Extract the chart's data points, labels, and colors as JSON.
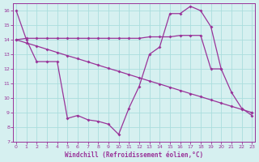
{
  "background_color": "#d6f0f0",
  "grid_color": "#aadddd",
  "line_color": "#993399",
  "lineA": {
    "x": [
      0,
      1,
      2,
      3,
      4,
      5,
      6,
      7,
      8,
      9,
      10,
      11,
      12,
      13,
      14,
      15,
      16,
      17,
      18,
      19,
      20,
      21,
      22,
      23
    ],
    "y": [
      16.0,
      14.0,
      12.5,
      12.5,
      12.5,
      8.6,
      8.8,
      8.5,
      8.4,
      8.2,
      7.5,
      9.3,
      10.8,
      13.0,
      13.5,
      15.8,
      15.8,
      16.3,
      16.0,
      14.9,
      12.0,
      10.4,
      9.3,
      8.8
    ]
  },
  "lineB": {
    "x": [
      0,
      1,
      2,
      3,
      4,
      5,
      6,
      7,
      8,
      9,
      10,
      11,
      12,
      13,
      14,
      15,
      16,
      17,
      18,
      19,
      20,
      21,
      22,
      23
    ],
    "y": [
      14.0,
      14.1,
      14.1,
      14.1,
      14.1,
      14.1,
      14.1,
      14.1,
      14.1,
      14.1,
      14.1,
      14.1,
      14.1,
      14.2,
      14.2,
      14.2,
      14.3,
      14.3,
      14.3,
      12.0,
      12.0,
      null,
      null,
      9.0
    ]
  },
  "lineC": {
    "x": [
      0,
      1,
      2,
      3,
      4,
      5,
      6,
      7,
      8,
      9,
      10,
      11,
      12,
      13,
      14,
      15,
      16,
      17,
      18,
      19,
      20,
      21,
      22,
      23
    ],
    "y": [
      14.0,
      13.78,
      13.57,
      13.35,
      13.13,
      12.91,
      12.7,
      12.48,
      12.26,
      12.04,
      11.83,
      11.61,
      11.39,
      11.17,
      10.96,
      10.74,
      10.52,
      10.3,
      10.09,
      9.87,
      9.65,
      9.43,
      9.22,
      9.0
    ]
  },
  "xlabel": "Windchill (Refroidissement éolien,°C)",
  "ylim": [
    7,
    16.5
  ],
  "xlim": [
    -0.3,
    23.3
  ],
  "yticks": [
    7,
    8,
    9,
    10,
    11,
    12,
    13,
    14,
    15,
    16
  ],
  "xticks": [
    0,
    1,
    2,
    3,
    4,
    5,
    6,
    7,
    8,
    9,
    10,
    11,
    12,
    13,
    14,
    15,
    16,
    17,
    18,
    19,
    20,
    21,
    22,
    23
  ]
}
